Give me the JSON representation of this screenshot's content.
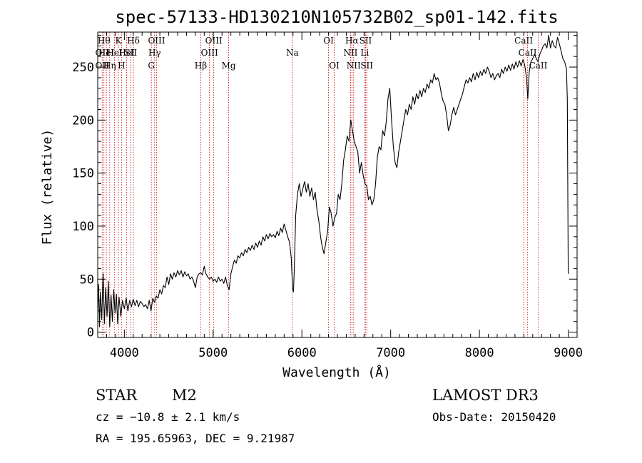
{
  "chart_data": {
    "type": "line",
    "title": "spec-57133-HD130210N105732B02_sp01-142.fits",
    "xlabel": "Wavelength (Å)",
    "ylabel": "Flux (relative)",
    "xlim": [
      3700,
      9100
    ],
    "ylim": [
      -5,
      283
    ],
    "xticks": [
      4000,
      5000,
      6000,
      7000,
      8000,
      9000
    ],
    "yticks": [
      0,
      50,
      100,
      150,
      200,
      250
    ],
    "grid": false,
    "series": [
      {
        "points": [
          [
            3700,
            20
          ],
          [
            3710,
            45
          ],
          [
            3720,
            5
          ],
          [
            3730,
            38
          ],
          [
            3745,
            12
          ],
          [
            3760,
            55
          ],
          [
            3775,
            8
          ],
          [
            3790,
            42
          ],
          [
            3805,
            15
          ],
          [
            3820,
            48
          ],
          [
            3835,
            5
          ],
          [
            3850,
            35
          ],
          [
            3865,
            10
          ],
          [
            3880,
            40
          ],
          [
            3895,
            18
          ],
          [
            3910,
            36
          ],
          [
            3925,
            8
          ],
          [
            3940,
            33
          ],
          [
            3960,
            15
          ],
          [
            3980,
            30
          ],
          [
            4000,
            22
          ],
          [
            4020,
            32
          ],
          [
            4040,
            20
          ],
          [
            4060,
            30
          ],
          [
            4080,
            24
          ],
          [
            4100,
            31
          ],
          [
            4120,
            25
          ],
          [
            4140,
            30
          ],
          [
            4160,
            24
          ],
          [
            4180,
            29
          ],
          [
            4200,
            27
          ],
          [
            4220,
            24
          ],
          [
            4240,
            26
          ],
          [
            4260,
            22
          ],
          [
            4280,
            30
          ],
          [
            4300,
            20
          ],
          [
            4320,
            32
          ],
          [
            4340,
            28
          ],
          [
            4360,
            34
          ],
          [
            4380,
            32
          ],
          [
            4400,
            40
          ],
          [
            4420,
            36
          ],
          [
            4440,
            44
          ],
          [
            4460,
            42
          ],
          [
            4480,
            52
          ],
          [
            4500,
            45
          ],
          [
            4520,
            55
          ],
          [
            4540,
            50
          ],
          [
            4560,
            56
          ],
          [
            4580,
            52
          ],
          [
            4600,
            58
          ],
          [
            4620,
            54
          ],
          [
            4640,
            58
          ],
          [
            4660,
            52
          ],
          [
            4680,
            57
          ],
          [
            4700,
            53
          ],
          [
            4720,
            55
          ],
          [
            4740,
            50
          ],
          [
            4760,
            52
          ],
          [
            4780,
            48
          ],
          [
            4800,
            42
          ],
          [
            4820,
            52
          ],
          [
            4840,
            55
          ],
          [
            4860,
            56
          ],
          [
            4880,
            54
          ],
          [
            4900,
            62
          ],
          [
            4920,
            55
          ],
          [
            4940,
            52
          ],
          [
            4960,
            50
          ],
          [
            4980,
            52
          ],
          [
            5000,
            48
          ],
          [
            5020,
            50
          ],
          [
            5040,
            47
          ],
          [
            5060,
            52
          ],
          [
            5080,
            48
          ],
          [
            5100,
            50
          ],
          [
            5120,
            46
          ],
          [
            5140,
            52
          ],
          [
            5160,
            44
          ],
          [
            5180,
            40
          ],
          [
            5200,
            55
          ],
          [
            5220,
            62
          ],
          [
            5240,
            68
          ],
          [
            5260,
            65
          ],
          [
            5280,
            72
          ],
          [
            5300,
            70
          ],
          [
            5320,
            75
          ],
          [
            5340,
            72
          ],
          [
            5360,
            78
          ],
          [
            5380,
            75
          ],
          [
            5400,
            80
          ],
          [
            5420,
            77
          ],
          [
            5440,
            82
          ],
          [
            5460,
            78
          ],
          [
            5480,
            84
          ],
          [
            5500,
            80
          ],
          [
            5520,
            86
          ],
          [
            5540,
            82
          ],
          [
            5560,
            90
          ],
          [
            5580,
            86
          ],
          [
            5600,
            92
          ],
          [
            5620,
            88
          ],
          [
            5640,
            93
          ],
          [
            5660,
            90
          ],
          [
            5680,
            92
          ],
          [
            5700,
            89
          ],
          [
            5720,
            95
          ],
          [
            5740,
            91
          ],
          [
            5760,
            98
          ],
          [
            5780,
            94
          ],
          [
            5800,
            102
          ],
          [
            5820,
            96
          ],
          [
            5840,
            90
          ],
          [
            5860,
            85
          ],
          [
            5880,
            70
          ],
          [
            5895,
            40
          ],
          [
            5905,
            38
          ],
          [
            5915,
            60
          ],
          [
            5930,
            110
          ],
          [
            5950,
            130
          ],
          [
            5970,
            140
          ],
          [
            5990,
            128
          ],
          [
            6010,
            135
          ],
          [
            6030,
            142
          ],
          [
            6050,
            132
          ],
          [
            6070,
            140
          ],
          [
            6090,
            128
          ],
          [
            6110,
            136
          ],
          [
            6130,
            125
          ],
          [
            6150,
            132
          ],
          [
            6170,
            115
          ],
          [
            6190,
            105
          ],
          [
            6210,
            90
          ],
          [
            6230,
            80
          ],
          [
            6250,
            74
          ],
          [
            6270,
            85
          ],
          [
            6290,
            95
          ],
          [
            6310,
            118
          ],
          [
            6330,
            112
          ],
          [
            6350,
            100
          ],
          [
            6370,
            108
          ],
          [
            6390,
            112
          ],
          [
            6410,
            130
          ],
          [
            6430,
            125
          ],
          [
            6450,
            140
          ],
          [
            6470,
            162
          ],
          [
            6490,
            172
          ],
          [
            6510,
            185
          ],
          [
            6530,
            180
          ],
          [
            6550,
            200
          ],
          [
            6570,
            190
          ],
          [
            6590,
            180
          ],
          [
            6610,
            175
          ],
          [
            6630,
            170
          ],
          [
            6650,
            150
          ],
          [
            6670,
            160
          ],
          [
            6690,
            148
          ],
          [
            6710,
            140
          ],
          [
            6730,
            138
          ],
          [
            6750,
            125
          ],
          [
            6770,
            128
          ],
          [
            6790,
            120
          ],
          [
            6810,
            125
          ],
          [
            6830,
            140
          ],
          [
            6850,
            165
          ],
          [
            6870,
            175
          ],
          [
            6890,
            172
          ],
          [
            6910,
            190
          ],
          [
            6930,
            185
          ],
          [
            6950,
            198
          ],
          [
            6970,
            220
          ],
          [
            6990,
            230
          ],
          [
            7010,
            200
          ],
          [
            7030,
            175
          ],
          [
            7050,
            160
          ],
          [
            7070,
            155
          ],
          [
            7090,
            170
          ],
          [
            7110,
            180
          ],
          [
            7130,
            190
          ],
          [
            7150,
            200
          ],
          [
            7170,
            210
          ],
          [
            7190,
            205
          ],
          [
            7210,
            215
          ],
          [
            7230,
            210
          ],
          [
            7250,
            222
          ],
          [
            7270,
            215
          ],
          [
            7290,
            225
          ],
          [
            7310,
            220
          ],
          [
            7330,
            228
          ],
          [
            7350,
            222
          ],
          [
            7370,
            230
          ],
          [
            7390,
            226
          ],
          [
            7410,
            234
          ],
          [
            7430,
            230
          ],
          [
            7450,
            238
          ],
          [
            7470,
            235
          ],
          [
            7490,
            244
          ],
          [
            7510,
            238
          ],
          [
            7530,
            240
          ],
          [
            7550,
            235
          ],
          [
            7570,
            225
          ],
          [
            7590,
            218
          ],
          [
            7610,
            215
          ],
          [
            7630,
            205
          ],
          [
            7650,
            190
          ],
          [
            7670,
            195
          ],
          [
            7690,
            205
          ],
          [
            7710,
            212
          ],
          [
            7730,
            205
          ],
          [
            7750,
            210
          ],
          [
            7770,
            215
          ],
          [
            7790,
            220
          ],
          [
            7810,
            225
          ],
          [
            7830,
            232
          ],
          [
            7850,
            238
          ],
          [
            7870,
            235
          ],
          [
            7890,
            240
          ],
          [
            7910,
            236
          ],
          [
            7930,
            244
          ],
          [
            7950,
            238
          ],
          [
            7970,
            245
          ],
          [
            7990,
            240
          ],
          [
            8010,
            246
          ],
          [
            8030,
            242
          ],
          [
            8050,
            248
          ],
          [
            8070,
            244
          ],
          [
            8090,
            250
          ],
          [
            8110,
            246
          ],
          [
            8130,
            240
          ],
          [
            8150,
            244
          ],
          [
            8170,
            238
          ],
          [
            8190,
            242
          ],
          [
            8210,
            244
          ],
          [
            8230,
            240
          ],
          [
            8250,
            248
          ],
          [
            8270,
            244
          ],
          [
            8290,
            250
          ],
          [
            8310,
            246
          ],
          [
            8330,
            252
          ],
          [
            8350,
            247
          ],
          [
            8370,
            253
          ],
          [
            8390,
            248
          ],
          [
            8410,
            255
          ],
          [
            8430,
            250
          ],
          [
            8450,
            256
          ],
          [
            8470,
            251
          ],
          [
            8490,
            257
          ],
          [
            8510,
            252
          ],
          [
            8530,
            240
          ],
          [
            8545,
            220
          ],
          [
            8560,
            245
          ],
          [
            8580,
            255
          ],
          [
            8600,
            258
          ],
          [
            8620,
            262
          ],
          [
            8640,
            258
          ],
          [
            8660,
            255
          ],
          [
            8680,
            262
          ],
          [
            8700,
            266
          ],
          [
            8720,
            270
          ],
          [
            8740,
            272
          ],
          [
            8760,
            268
          ],
          [
            8780,
            280
          ],
          [
            8800,
            268
          ],
          [
            8820,
            275
          ],
          [
            8840,
            270
          ],
          [
            8860,
            268
          ],
          [
            8880,
            278
          ],
          [
            8900,
            272
          ],
          [
            8920,
            265
          ],
          [
            8940,
            258
          ],
          [
            8960,
            255
          ],
          [
            8980,
            248
          ],
          [
            8990,
            220
          ],
          [
            9000,
            55
          ]
        ]
      }
    ],
    "lines": [
      {
        "wl": 3750,
        "label": "OII",
        "row": 2
      },
      {
        "wl": 3750,
        "label": "OII",
        "row": 3
      },
      {
        "wl": 3770,
        "label": "Hθ",
        "row": 1
      },
      {
        "wl": 3797,
        "label": "HeI",
        "row": 2
      },
      {
        "wl": 3835,
        "label": "Hη",
        "row": 3
      },
      {
        "wl": 3889,
        "label": "HeI",
        "row": 2
      },
      {
        "wl": 3933,
        "label": "K",
        "row": 1
      },
      {
        "wl": 3968,
        "label": "H",
        "row": 3
      },
      {
        "wl": 4026,
        "label": "HeI",
        "row": 2
      },
      {
        "wl": 4072,
        "label": "SII",
        "row": 2
      },
      {
        "wl": 4102,
        "label": "Hδ",
        "row": 1
      },
      {
        "wl": 4304,
        "label": "G",
        "row": 3
      },
      {
        "wl": 4341,
        "label": "Hγ",
        "row": 2
      },
      {
        "wl": 4363,
        "label": "OIII",
        "row": 1
      },
      {
        "wl": 4861,
        "label": "Hβ",
        "row": 3
      },
      {
        "wl": 4959,
        "label": "OIII",
        "row": 2
      },
      {
        "wl": 5007,
        "label": "OIII",
        "row": 1
      },
      {
        "wl": 5175,
        "label": "Mg",
        "row": 3
      },
      {
        "wl": 5893,
        "label": "Na",
        "row": 2
      },
      {
        "wl": 6300,
        "label": "OI",
        "row": 1
      },
      {
        "wl": 6364,
        "label": "OI",
        "row": 3
      },
      {
        "wl": 6548,
        "label": "NII",
        "row": 2
      },
      {
        "wl": 6563,
        "label": "Hα",
        "row": 1
      },
      {
        "wl": 6583,
        "label": "NII",
        "row": 3
      },
      {
        "wl": 6708,
        "label": "Li",
        "row": 2
      },
      {
        "wl": 6717,
        "label": "SII",
        "row": 1
      },
      {
        "wl": 6731,
        "label": "SII",
        "row": 3
      },
      {
        "wl": 8498,
        "label": "CaII",
        "row": 1
      },
      {
        "wl": 8542,
        "label": "CaII",
        "row": 2
      },
      {
        "wl": 8662,
        "label": "CaII",
        "row": 3
      }
    ]
  },
  "info": {
    "object_type": "STAR",
    "subclass": "M2",
    "survey": "LAMOST DR3",
    "cz": "cz = −10.8 ± 2.1 km/s",
    "obs_date": "Obs-Date: 20150420",
    "coords": "RA = 195.65963, DEC =   9.21987"
  },
  "colors": {
    "spectrum": "#000000",
    "line_markers": "#cc0000",
    "axes": "#000000"
  }
}
